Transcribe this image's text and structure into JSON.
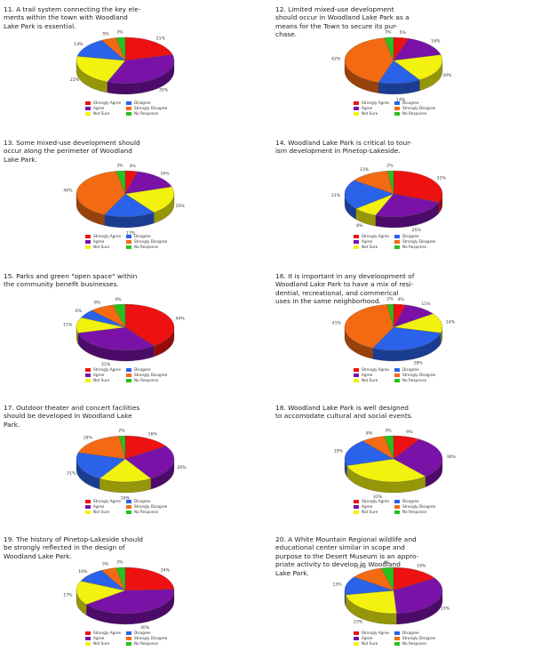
{
  "colors": {
    "Strongly Agree": "#ee1111",
    "Agree": "#7a12a8",
    "Not Sure": "#f2f20e",
    "Disagree": "#2b62ea",
    "Strongly Disagree": "#f46a12",
    "No Response": "#27c21d"
  },
  "legend_labels": [
    "Strongly Agree",
    "Disagree",
    "Agree",
    "Strongly Disagree",
    "Not Sure",
    "No Response"
  ],
  "chart_data": [
    {
      "id": "q11",
      "type": "pie",
      "title": "11. A trail system connecting the key ele-\nments within the town with Woodland\nLake Park is essential.",
      "slices": [
        {
          "name": "Strongly Agree",
          "value": 21,
          "label": "21%"
        },
        {
          "name": "Agree",
          "value": 35,
          "label": "35%"
        },
        {
          "name": "Not Sure",
          "value": 22,
          "label": "22%"
        },
        {
          "name": "Disagree",
          "value": 14,
          "label": "14%"
        },
        {
          "name": "Strongly Disagree",
          "value": 5,
          "label": "5%"
        },
        {
          "name": "No Response",
          "value": 3,
          "label": "3%"
        }
      ]
    },
    {
      "id": "q12",
      "type": "pie",
      "title": "12. Limited mixed-use development\nshould occur in Woodland Lake Park as a\nmeans for the Town to secure its pur-\nchase.",
      "slices": [
        {
          "name": "Strongly Agree",
          "value": 5,
          "label": "5%"
        },
        {
          "name": "Agree",
          "value": 16,
          "label": "16%"
        },
        {
          "name": "Not Sure",
          "value": 20,
          "label": "20%"
        },
        {
          "name": "Disagree",
          "value": 14,
          "label": "14%"
        },
        {
          "name": "Strongly Disagree",
          "value": 42,
          "label": "42%"
        },
        {
          "name": "No Response",
          "value": 3,
          "label": "3%"
        }
      ]
    },
    {
      "id": "q13",
      "type": "pie",
      "title": "13. Some mixed-use development should\noccur along the perimeter of Woodland\nLake Park.",
      "slices": [
        {
          "name": "Strongly Agree",
          "value": 4,
          "label": "4%"
        },
        {
          "name": "Agree",
          "value": 16,
          "label": "16%"
        },
        {
          "name": "Not Sure",
          "value": 20,
          "label": "20%"
        },
        {
          "name": "Disagree",
          "value": 17,
          "label": "17%"
        },
        {
          "name": "Strongly Disagree",
          "value": 40,
          "label": "40%"
        },
        {
          "name": "No Response",
          "value": 3,
          "label": "3%"
        }
      ]
    },
    {
      "id": "q14",
      "type": "pie",
      "title": "14. Woodland Lake Park is critical to tour-\nism development in Pinetop-Lakeside.",
      "slices": [
        {
          "name": "Strongly Agree",
          "value": 31,
          "label": "31%"
        },
        {
          "name": "Agree",
          "value": 25,
          "label": "25%"
        },
        {
          "name": "Not Sure",
          "value": 8,
          "label": "8%"
        },
        {
          "name": "Disagree",
          "value": 21,
          "label": "21%"
        },
        {
          "name": "Strongly Disagree",
          "value": 13,
          "label": "13%"
        },
        {
          "name": "No Response",
          "value": 2,
          "label": "2%"
        }
      ]
    },
    {
      "id": "q15",
      "type": "pie",
      "title": "15. Parks and green \"open space\" within\nthe community benefit businesses.",
      "slices": [
        {
          "name": "Strongly Agree",
          "value": 40,
          "label": "40%"
        },
        {
          "name": "Agree",
          "value": 31,
          "label": "31%"
        },
        {
          "name": "Not Sure",
          "value": 11,
          "label": "11%"
        },
        {
          "name": "Disagree",
          "value": 6,
          "label": "6%"
        },
        {
          "name": "Strongly Disagree",
          "value": 8,
          "label": "8%"
        },
        {
          "name": "No Response",
          "value": 4,
          "label": "4%"
        }
      ]
    },
    {
      "id": "q16",
      "type": "pie",
      "title": "16. It is important in any develoopment of\nWoodland Lake Park to have a mix of resi-\ndential, recreational, and commerical\nuses in the same neighborhood.",
      "slices": [
        {
          "name": "Strongly Agree",
          "value": 4,
          "label": "4%"
        },
        {
          "name": "Agree",
          "value": 11,
          "label": "11%"
        },
        {
          "name": "Not Sure",
          "value": 14,
          "label": "14%"
        },
        {
          "name": "Disagree",
          "value": 28,
          "label": "28%"
        },
        {
          "name": "Strongly Disagree",
          "value": 41,
          "label": "41%"
        },
        {
          "name": "No Response",
          "value": 2,
          "label": "2%"
        }
      ]
    },
    {
      "id": "q17",
      "type": "pie",
      "title": "17. Outdoor theater and concert facilities\nshould be developed in Woodland Lake\nPark.",
      "slices": [
        {
          "name": "Strongly Agree",
          "value": 16,
          "label": "16%"
        },
        {
          "name": "Agree",
          "value": 26,
          "label": "26%"
        },
        {
          "name": "Not Sure",
          "value": 18,
          "label": "18%"
        },
        {
          "name": "Disagree",
          "value": 21,
          "label": "21%"
        },
        {
          "name": "Strongly Disagree",
          "value": 19,
          "label": "19%"
        },
        {
          "name": "No Response",
          "value": 2,
          "label": "2%"
        }
      ]
    },
    {
      "id": "q18",
      "type": "pie",
      "title": "18. Woodland Lake Park is well designed\nto accomodate cultural and social events.",
      "slices": [
        {
          "name": "Strongly Agree",
          "value": 9,
          "label": "9%"
        },
        {
          "name": "Agree",
          "value": 30,
          "label": "30%"
        },
        {
          "name": "Not Sure",
          "value": 32,
          "label": "32%"
        },
        {
          "name": "Disagree",
          "value": 19,
          "label": "19%"
        },
        {
          "name": "Strongly Disagree",
          "value": 8,
          "label": "8%"
        },
        {
          "name": "No Response",
          "value": 3,
          "label": "3%"
        }
      ]
    },
    {
      "id": "q19",
      "type": "pie",
      "title": "19. The history of Pinetop-Lakeside should\nbe strongly reflected in the design of\nWoodland Lake Park.",
      "slices": [
        {
          "name": "Strongly Agree",
          "value": 24,
          "label": "24%"
        },
        {
          "name": "Agree",
          "value": 40,
          "label": "40%"
        },
        {
          "name": "Not Sure",
          "value": 17,
          "label": "17%"
        },
        {
          "name": "Disagree",
          "value": 10,
          "label": "10%"
        },
        {
          "name": "Strongly Disagree",
          "value": 5,
          "label": "5%"
        },
        {
          "name": "No Response",
          "value": 3,
          "label": "3%"
        }
      ]
    },
    {
      "id": "q20",
      "type": "pie",
      "title": "20. A White Mountain Regional wildlife and\neducational center similar in scope and\npurpose to the Desert Museum is an appro-\npriate activity to develop in Woodland\nLake Park.",
      "slices": [
        {
          "name": "Strongly Agree",
          "value": 16,
          "label": "16%"
        },
        {
          "name": "Agree",
          "value": 33,
          "label": "33%"
        },
        {
          "name": "Not Sure",
          "value": 23,
          "label": "23%"
        },
        {
          "name": "Disagree",
          "value": 13,
          "label": "13%"
        },
        {
          "name": "Strongly Disagree",
          "value": 11,
          "label": "11%"
        },
        {
          "name": "No Response",
          "value": 4,
          "label": "4%"
        }
      ]
    }
  ]
}
